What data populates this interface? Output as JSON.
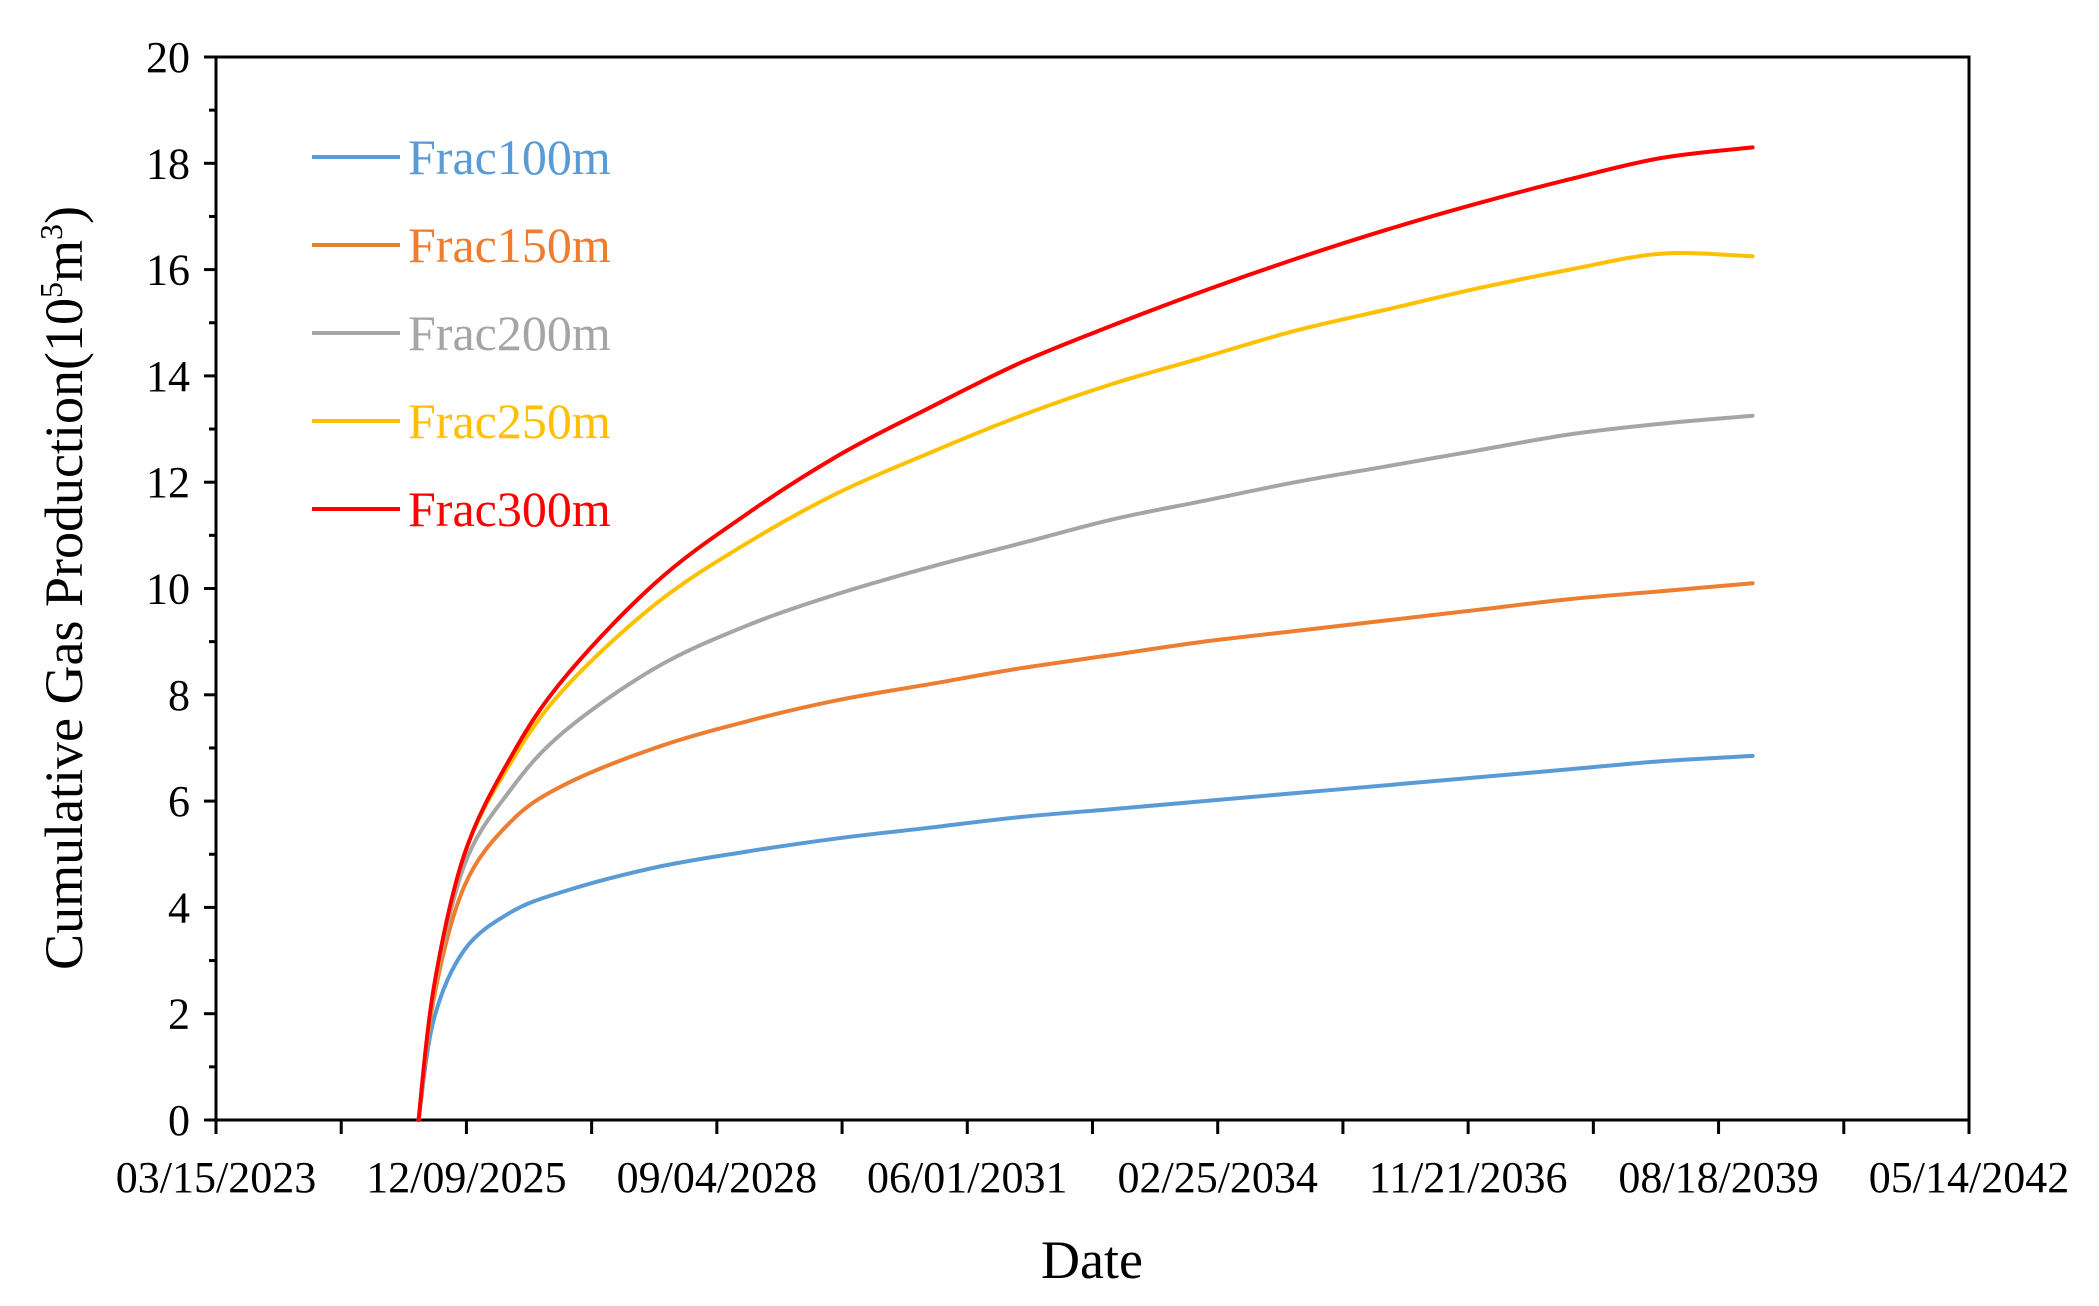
{
  "chart_data": {
    "type": "line",
    "title": "",
    "xlabel": "Date",
    "ylabel_main": "Cumulative Gas Production(10",
    "ylabel_sup1": "5",
    "ylabel_mid": "m",
    "ylabel_sup2": "3",
    "ylabel_end": ")",
    "xlim": [
      "03/15/2023",
      "05/14/2042"
    ],
    "ylim": [
      0,
      20
    ],
    "x_ticks": [
      "03/15/2023",
      "12/09/2025",
      "09/04/2028",
      "06/01/2031",
      "02/25/2034",
      "11/21/2036",
      "08/18/2039",
      "05/14/2042"
    ],
    "y_ticks": [
      "0",
      "2",
      "4",
      "6",
      "8",
      "10",
      "12",
      "14",
      "16",
      "18",
      "20"
    ],
    "grid": false,
    "legend_position": "top-left",
    "x": [
      "06/01/2025",
      "08/01/2025",
      "12/01/2025",
      "06/01/2026",
      "01/01/2027",
      "01/01/2028",
      "01/01/2029",
      "01/01/2030",
      "01/01/2031",
      "01/01/2032",
      "01/01/2033",
      "01/01/2034",
      "01/01/2035",
      "01/01/2036",
      "01/01/2037",
      "01/01/2038",
      "01/01/2039",
      "01/01/2040"
    ],
    "series": [
      {
        "name": "Frac100m",
        "color": "#5B9BD5",
        "values": [
          0.0,
          1.9,
          3.2,
          3.9,
          4.3,
          4.75,
          5.05,
          5.3,
          5.5,
          5.7,
          5.85,
          6.0,
          6.15,
          6.3,
          6.45,
          6.6,
          6.75,
          6.85
        ]
      },
      {
        "name": "Frac150m",
        "color": "#ED7D31",
        "values": [
          0.0,
          2.3,
          4.4,
          5.6,
          6.3,
          7.0,
          7.5,
          7.9,
          8.2,
          8.5,
          8.75,
          9.0,
          9.2,
          9.4,
          9.6,
          9.8,
          9.95,
          10.1
        ]
      },
      {
        "name": "Frac200m",
        "color": "#A5A5A5",
        "values": [
          0.0,
          2.4,
          4.8,
          6.2,
          7.3,
          8.5,
          9.3,
          9.9,
          10.4,
          10.85,
          11.3,
          11.65,
          12.0,
          12.3,
          12.6,
          12.9,
          13.1,
          13.25
        ]
      },
      {
        "name": "Frac250m",
        "color": "#FFC000",
        "values": [
          0.0,
          2.45,
          5.0,
          6.7,
          8.1,
          9.7,
          10.85,
          11.8,
          12.55,
          13.25,
          13.85,
          14.35,
          14.85,
          15.25,
          15.65,
          16.0,
          16.3,
          16.25
        ]
      },
      {
        "name": "Frac300m",
        "color": "#FF0000",
        "values": [
          0.0,
          2.5,
          5.0,
          6.8,
          8.3,
          10.1,
          11.4,
          12.5,
          13.4,
          14.25,
          14.95,
          15.6,
          16.2,
          16.75,
          17.25,
          17.7,
          18.1,
          18.3
        ]
      }
    ]
  }
}
